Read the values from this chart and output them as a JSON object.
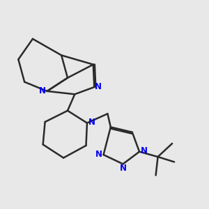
{
  "background_color": "#e8e8e8",
  "bond_color": "#2a2a2a",
  "nitrogen_color": "#0000ee",
  "line_width": 1.8,
  "fig_size": [
    3.0,
    3.0
  ],
  "dpi": 100,
  "xlim": [
    0,
    10
  ],
  "ylim": [
    0,
    10
  ]
}
